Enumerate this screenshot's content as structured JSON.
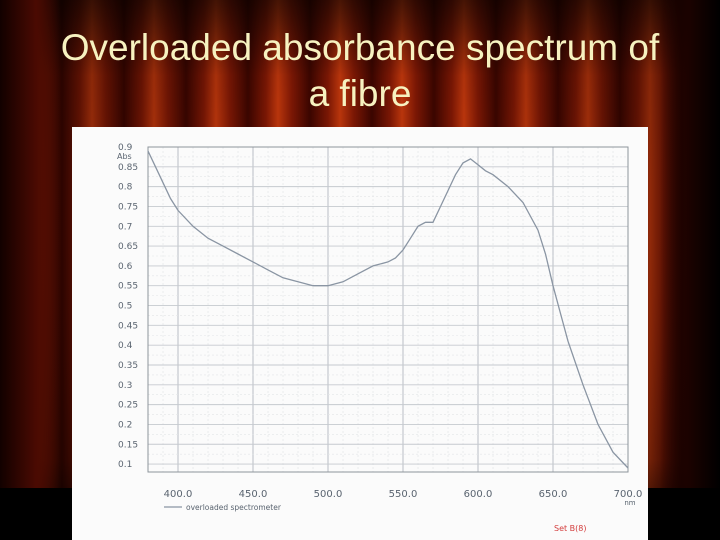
{
  "slide": {
    "title_line_1": "Overloaded absorbance spectrum of",
    "title_line_2": "a fibre"
  },
  "chart_data": {
    "type": "line",
    "ylabel": "Abs",
    "xlabel": "nm",
    "xlim": [
      380,
      700
    ],
    "ylim": [
      0.08,
      0.9
    ],
    "x_ticks": [
      400,
      450,
      500,
      550,
      600,
      650,
      700
    ],
    "x_tick_labels": [
      "400.0",
      "450.0",
      "500.0",
      "550.0",
      "600.0",
      "650.0",
      "700.0"
    ],
    "y_ticks": [
      0.9,
      0.85,
      0.8,
      0.75,
      0.7,
      0.65,
      0.6,
      0.55,
      0.5,
      0.45,
      0.4,
      0.35,
      0.3,
      0.25,
      0.2,
      0.15,
      0.1
    ],
    "y_tick_labels": [
      "0.9",
      "0.85",
      "0.8",
      "0.75",
      "0.7",
      "0.65",
      "0.6",
      "0.55",
      "0.5",
      "0.45",
      "0.4",
      "0.35",
      "0.3",
      "0.25",
      "0.2",
      "0.15",
      "0.1"
    ],
    "grid": true,
    "legend": "bottom-left",
    "series": [
      {
        "name": "overloaded spectrometer",
        "color": "#8a95a3",
        "x": [
          380,
          385,
          390,
          395,
          400,
          410,
          420,
          430,
          440,
          450,
          460,
          470,
          480,
          490,
          500,
          510,
          520,
          530,
          540,
          545,
          550,
          555,
          560,
          565,
          570,
          575,
          580,
          585,
          590,
          595,
          600,
          605,
          610,
          620,
          630,
          640,
          645,
          650,
          655,
          660,
          670,
          680,
          690,
          700
        ],
        "y": [
          0.89,
          0.85,
          0.81,
          0.77,
          0.74,
          0.7,
          0.67,
          0.65,
          0.63,
          0.61,
          0.59,
          0.57,
          0.56,
          0.55,
          0.55,
          0.56,
          0.58,
          0.6,
          0.61,
          0.62,
          0.64,
          0.67,
          0.7,
          0.71,
          0.71,
          0.75,
          0.79,
          0.83,
          0.86,
          0.87,
          0.855,
          0.84,
          0.83,
          0.8,
          0.76,
          0.69,
          0.63,
          0.55,
          0.48,
          0.41,
          0.3,
          0.2,
          0.13,
          0.09
        ]
      }
    ],
    "annotation": "Set B(8)"
  }
}
